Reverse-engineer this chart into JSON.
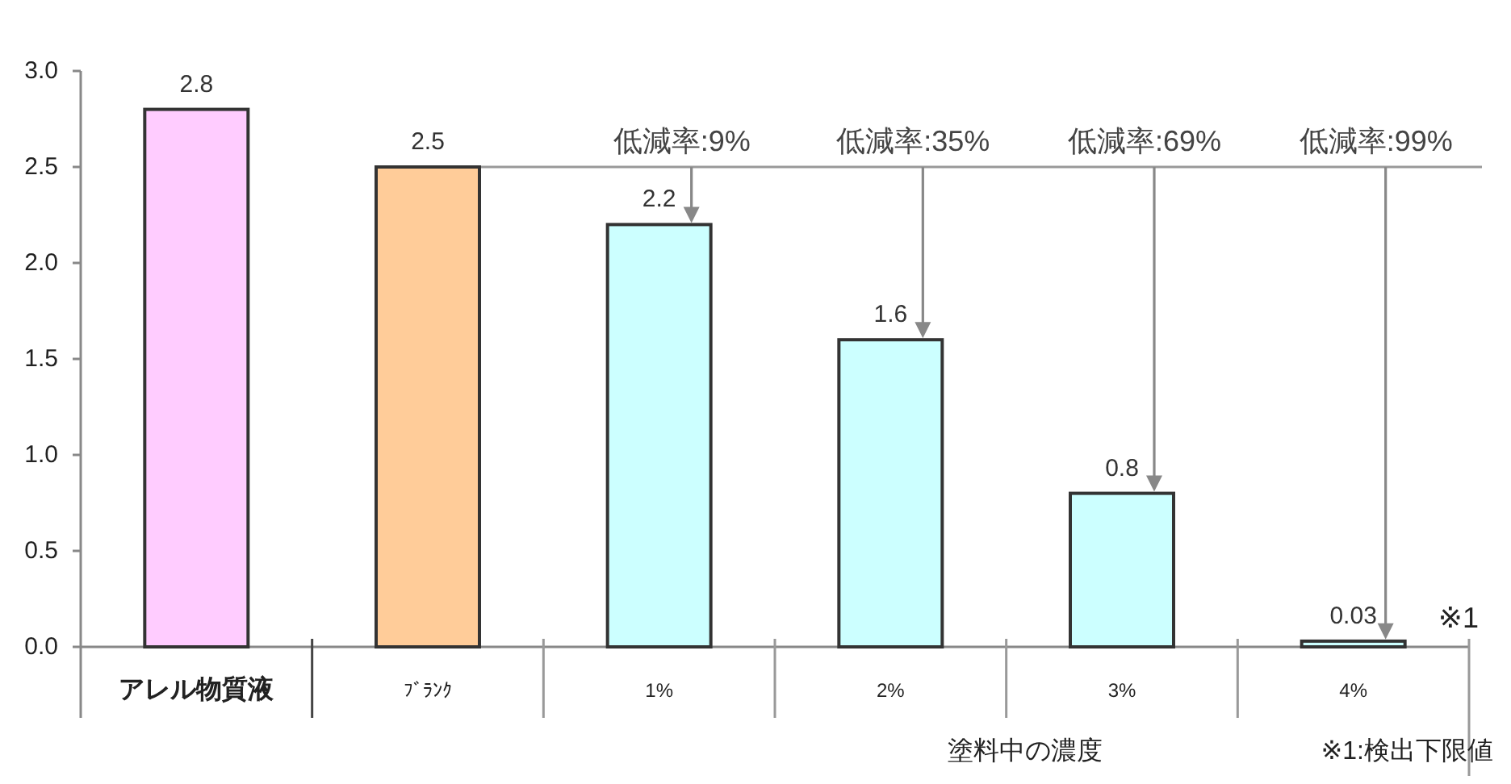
{
  "chart_data": {
    "type": "bar",
    "categories": [
      "アレル物質液",
      "ﾌﾞﾗﾝｸ",
      "1%",
      "2%",
      "3%",
      "4%"
    ],
    "values": [
      2.8,
      2.5,
      2.2,
      1.6,
      0.8,
      0.03
    ],
    "colors": [
      "#ffccff",
      "#ffcc99",
      "#ccffff",
      "#ccffff",
      "#ccffff",
      "#ccffff"
    ],
    "ylim": [
      0,
      3
    ],
    "yticks": [
      {
        "value": 0,
        "label": "0.0"
      },
      {
        "value": 0.5,
        "label": "0.5"
      },
      {
        "value": 1,
        "label": "1.0"
      },
      {
        "value": 1.5,
        "label": "1.5"
      },
      {
        "value": 2,
        "label": "2.0"
      },
      {
        "value": 2.5,
        "label": "2.5"
      },
      {
        "value": 3,
        "label": "3.0"
      }
    ],
    "data_labels": true,
    "xlabel": "塗料中の濃度",
    "ref_lines": [
      {
        "axis": "y",
        "value": 2.5,
        "color": "#999999"
      }
    ],
    "annotations": [
      {
        "text": "低減率:9%",
        "x": "1%",
        "y": 2.5
      },
      {
        "text": "低減率:35%",
        "x": "2%",
        "y": 2.5
      },
      {
        "text": "低減率:69%",
        "x": "3%",
        "y": 2.5
      },
      {
        "text": "低減率:99%",
        "x": "4%",
        "y": 2.5
      },
      "※1",
      "※1:検出下限値"
    ]
  }
}
